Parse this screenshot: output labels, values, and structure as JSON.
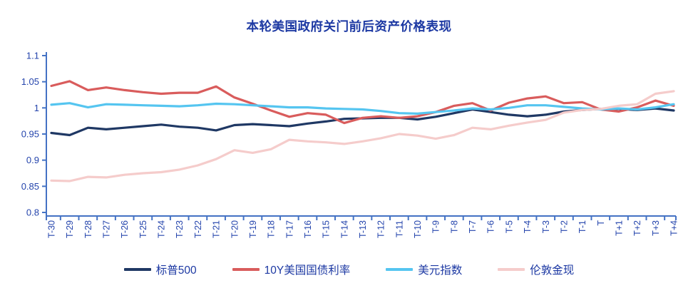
{
  "chart_data": {
    "type": "line",
    "title": "本轮美国政府关门前后资产价格表现",
    "categories": [
      "T-30",
      "T-29",
      "T-28",
      "T-27",
      "T-26",
      "T-25",
      "T-24",
      "T-23",
      "T-22",
      "T-21",
      "T-20",
      "T-19",
      "T-18",
      "T-17",
      "T-16",
      "T-15",
      "T-14",
      "T-13",
      "T-12",
      "T-11",
      "T-10",
      "T-9",
      "T-8",
      "T-7",
      "T-6",
      "T-5",
      "T-4",
      "T-3",
      "T-2",
      "T-1",
      "T",
      "T+1",
      "T+2",
      "T+3",
      "T+4"
    ],
    "series": [
      {
        "name": "标普500",
        "color": "#1F3864",
        "values": [
          0.952,
          0.948,
          0.962,
          0.959,
          0.962,
          0.965,
          0.968,
          0.964,
          0.962,
          0.957,
          0.967,
          0.969,
          0.967,
          0.965,
          0.97,
          0.974,
          0.979,
          0.98,
          0.981,
          0.981,
          0.978,
          0.983,
          0.99,
          0.997,
          0.992,
          0.987,
          0.984,
          0.987,
          0.993,
          0.996,
          0.998,
          0.998,
          0.996,
          0.999,
          0.995
        ]
      },
      {
        "name": "10Y美国国债利率",
        "color": "#D95C5C",
        "values": [
          1.042,
          1.051,
          1.034,
          1.039,
          1.034,
          1.03,
          1.027,
          1.029,
          1.029,
          1.041,
          1.02,
          1.008,
          0.995,
          0.983,
          0.99,
          0.987,
          0.971,
          0.981,
          0.984,
          0.981,
          0.984,
          0.992,
          1.004,
          1.009,
          0.995,
          1.01,
          1.018,
          1.022,
          1.009,
          1.011,
          0.997,
          0.993,
          1.001,
          1.014,
          1.004
        ]
      },
      {
        "name": "美元指数",
        "color": "#55C5F0",
        "values": [
          1.006,
          1.009,
          1.001,
          1.007,
          1.006,
          1.005,
          1.004,
          1.003,
          1.005,
          1.008,
          1.007,
          1.005,
          1.003,
          1.001,
          1.001,
          0.999,
          0.998,
          0.997,
          0.994,
          0.99,
          0.989,
          0.992,
          0.995,
          0.999,
          0.997,
          1.0,
          1.005,
          1.005,
          1.002,
          0.999,
          0.997,
          0.999,
          0.997,
          1.001,
          1.007
        ]
      },
      {
        "name": "伦敦金现",
        "color": "#F5CCCB",
        "values": [
          0.861,
          0.86,
          0.868,
          0.867,
          0.872,
          0.875,
          0.877,
          0.882,
          0.89,
          0.902,
          0.919,
          0.914,
          0.921,
          0.939,
          0.936,
          0.934,
          0.931,
          0.936,
          0.942,
          0.95,
          0.947,
          0.941,
          0.948,
          0.962,
          0.959,
          0.966,
          0.972,
          0.977,
          0.991,
          0.996,
          0.998,
          1.004,
          1.007,
          1.027,
          1.032
        ]
      }
    ],
    "ylim": [
      0.8,
      1.1
    ],
    "yticks": [
      1.1,
      1.05,
      1.0,
      0.95,
      0.9,
      0.85,
      0.8
    ],
    "ytick_labels": [
      "1.1",
      "1.05",
      "1",
      "0.95",
      "0.9",
      "0.85",
      "0.8"
    ],
    "grid": false,
    "legend_position": "bottom",
    "axis_color": "#4472C4",
    "tick_text_color": "#2444AC",
    "title_color": "#1D39A3",
    "legend_text_color": "#1D39A3"
  }
}
